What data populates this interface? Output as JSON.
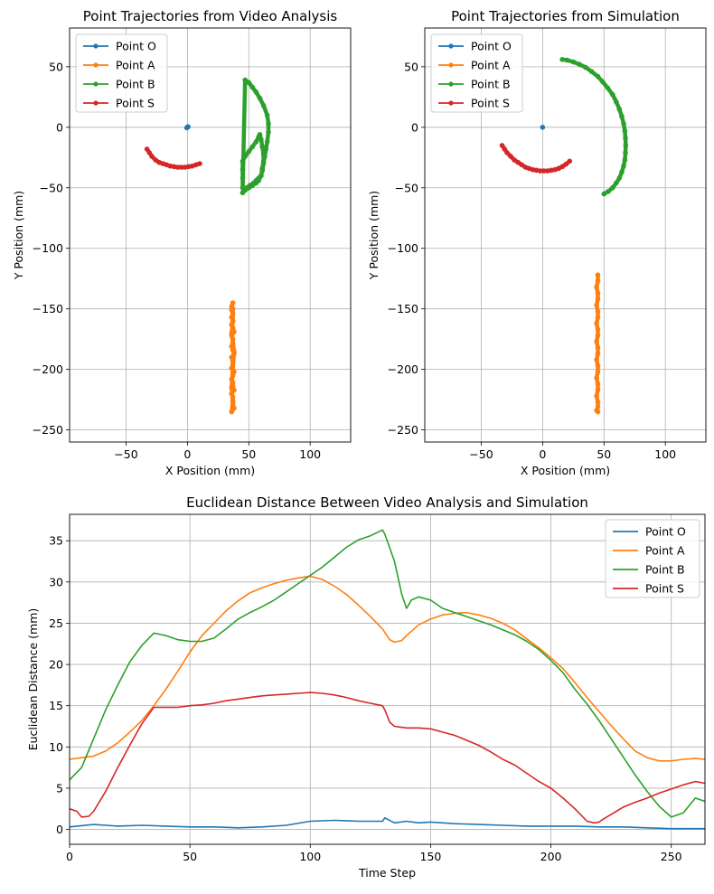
{
  "colors": {
    "Point O": "#1f77b4",
    "Point A": "#ff7f0e",
    "Point B": "#2ca02c",
    "Point S": "#d62728"
  },
  "chart_data": [
    {
      "type": "scatter",
      "title": "Point Trajectories from Video Analysis",
      "xlabel": "X Position (mm)",
      "ylabel": "Y Position (mm)",
      "xlim": [
        -96,
        133
      ],
      "ylim": [
        -260,
        82
      ],
      "xticks": [
        -50,
        0,
        50,
        100
      ],
      "yticks": [
        50,
        0,
        -50,
        -100,
        -150,
        -200,
        -250
      ],
      "grid": true,
      "legend": "upper left",
      "series": [
        {
          "name": "Point O",
          "x": [
            0,
            0.5,
            -0.5,
            0.3,
            0
          ],
          "y": [
            0,
            0.5,
            -0.4,
            0.3,
            0
          ]
        },
        {
          "name": "Point A",
          "x": [
            37,
            36,
            36,
            37,
            36,
            37,
            36,
            37,
            38,
            36,
            37,
            37,
            36,
            37,
            38,
            36,
            37,
            37,
            36,
            38,
            37,
            36,
            37,
            37,
            38,
            36,
            37,
            37,
            37,
            38,
            36,
            37,
            36,
            37,
            38,
            36,
            37,
            37
          ],
          "y": [
            -145,
            -148,
            -151,
            -154,
            -157,
            -160,
            -163,
            -166,
            -169,
            -172,
            -175,
            -178,
            -181,
            -184,
            -187,
            -190,
            -193,
            -196,
            -199,
            -202,
            -205,
            -208,
            -211,
            -214,
            -217,
            -220,
            -223,
            -226,
            -229,
            -232,
            -235,
            -227,
            -215,
            -200,
            -185,
            -170,
            -160,
            -150
          ]
        },
        {
          "name": "Point B",
          "x": [
            45,
            47,
            50,
            53,
            56,
            58,
            60,
            61,
            62,
            62,
            61,
            60,
            59,
            58,
            56,
            53,
            50,
            47,
            45,
            45,
            45,
            45,
            47,
            50,
            53,
            56,
            59,
            62,
            65,
            66,
            66,
            65,
            64,
            63,
            62,
            61,
            60,
            58,
            56,
            54,
            51,
            48,
            46,
            45
          ],
          "y": [
            -54,
            -52,
            -50,
            -48,
            -46,
            -44,
            -40,
            -34,
            -28,
            -22,
            -16,
            -10,
            -6,
            -8,
            -12,
            -16,
            -20,
            -24,
            -28,
            -35,
            -42,
            -50,
            39,
            37,
            33,
            29,
            24,
            18,
            10,
            3,
            -4,
            -12,
            -18,
            -24,
            -30,
            -36,
            -40,
            -42,
            -44,
            -46,
            -48,
            -50,
            -52,
            -54
          ]
        },
        {
          "name": "Point S",
          "x": [
            -33,
            -31,
            -29,
            -26,
            -23,
            -20,
            -17,
            -14,
            -11,
            -8,
            -5,
            -2,
            1,
            4,
            7,
            10
          ],
          "y": [
            -18,
            -21,
            -24,
            -27,
            -29,
            -30,
            -31,
            -32,
            -32.5,
            -33,
            -33,
            -33,
            -32.5,
            -32,
            -31,
            -30
          ]
        }
      ]
    },
    {
      "type": "scatter",
      "title": "Point Trajectories from Simulation",
      "xlabel": "X Position (mm)",
      "ylabel": "Y Position (mm)",
      "xlim": [
        -96,
        133
      ],
      "ylim": [
        -260,
        82
      ],
      "xticks": [
        -50,
        0,
        50,
        100
      ],
      "yticks": [
        50,
        0,
        -50,
        -100,
        -150,
        -200,
        -250
      ],
      "grid": true,
      "legend": "upper left",
      "series": [
        {
          "name": "Point O",
          "x": [
            0
          ],
          "y": [
            0
          ]
        },
        {
          "name": "Point A",
          "x": [
            45,
            45,
            44,
            45,
            45,
            44,
            45,
            45,
            44,
            45,
            45,
            44,
            45,
            45,
            44,
            45,
            45,
            44,
            45,
            45,
            44,
            45,
            45,
            44,
            45
          ],
          "y": [
            -122,
            -127,
            -132,
            -137,
            -142,
            -147,
            -152,
            -157,
            -162,
            -167,
            -172,
            -177,
            -182,
            -187,
            -192,
            -197,
            -202,
            -207,
            -212,
            -217,
            -222,
            -227,
            -231,
            -234,
            -235
          ]
        },
        {
          "name": "Point B",
          "x": [
            16,
            20,
            25,
            30,
            35,
            40,
            45,
            49,
            53,
            57,
            60,
            62.5,
            64.5,
            66,
            67,
            67.5,
            67.7,
            67.5,
            67,
            66,
            64.5,
            62.5,
            60,
            57,
            53.5,
            50
          ],
          "y": [
            56,
            55.5,
            54,
            52,
            49.5,
            46,
            42,
            37.5,
            32.5,
            27,
            21,
            15,
            9,
            3,
            -3,
            -9,
            -15,
            -21,
            -27,
            -32,
            -37,
            -42,
            -46,
            -50,
            -53,
            -55
          ]
        },
        {
          "name": "Point S",
          "x": [
            -33,
            -31,
            -29,
            -26,
            -23,
            -20,
            -17,
            -14,
            -11,
            -8,
            -5,
            -2,
            1,
            4,
            7,
            10,
            13,
            16,
            19,
            22
          ],
          "y": [
            -15,
            -18,
            -21,
            -24,
            -27,
            -29,
            -31,
            -33,
            -34,
            -35,
            -35.5,
            -36,
            -36,
            -36,
            -35.5,
            -35,
            -34,
            -32.5,
            -30.5,
            -28
          ]
        }
      ]
    },
    {
      "type": "line",
      "title": "Euclidean Distance Between Video Analysis and Simulation",
      "xlabel": "Time Step",
      "ylabel": "Euclidean Distance (mm)",
      "xlim": [
        0,
        264
      ],
      "ylim": [
        -1.8,
        38.2
      ],
      "xticks": [
        0,
        50,
        100,
        150,
        200,
        250
      ],
      "yticks": [
        0,
        5,
        10,
        15,
        20,
        25,
        30,
        35
      ],
      "grid": true,
      "legend": "upper right",
      "series": [
        {
          "name": "Point O",
          "x": [
            0,
            10,
            20,
            30,
            40,
            50,
            60,
            70,
            80,
            90,
            100,
            110,
            120,
            125,
            130,
            131,
            135,
            140,
            145,
            150,
            160,
            170,
            180,
            190,
            200,
            210,
            220,
            230,
            240,
            250,
            260,
            264
          ],
          "y": [
            0.3,
            0.6,
            0.4,
            0.5,
            0.4,
            0.3,
            0.3,
            0.2,
            0.3,
            0.5,
            1.0,
            1.1,
            1.0,
            1.0,
            1.0,
            1.4,
            0.8,
            1.0,
            0.8,
            0.9,
            0.7,
            0.6,
            0.5,
            0.4,
            0.4,
            0.4,
            0.3,
            0.3,
            0.2,
            0.1,
            0.1,
            0.1
          ]
        },
        {
          "name": "Point A",
          "x": [
            0,
            5,
            10,
            15,
            20,
            25,
            30,
            35,
            40,
            45,
            50,
            55,
            60,
            65,
            70,
            75,
            80,
            85,
            90,
            95,
            100,
            105,
            110,
            115,
            120,
            125,
            130,
            133,
            135,
            138,
            140,
            145,
            150,
            155,
            160,
            165,
            170,
            175,
            180,
            185,
            190,
            195,
            200,
            205,
            210,
            215,
            220,
            225,
            230,
            235,
            240,
            245,
            250,
            255,
            260,
            264
          ],
          "y": [
            8.5,
            8.7,
            8.9,
            9.5,
            10.5,
            11.8,
            13.2,
            15.0,
            17.0,
            19.2,
            21.5,
            23.5,
            25.0,
            26.5,
            27.7,
            28.7,
            29.3,
            29.8,
            30.2,
            30.5,
            30.7,
            30.3,
            29.5,
            28.5,
            27.2,
            25.8,
            24.3,
            23.0,
            22.7,
            22.9,
            23.5,
            24.8,
            25.5,
            26.0,
            26.2,
            26.3,
            26.0,
            25.6,
            25.0,
            24.2,
            23.1,
            22.0,
            20.8,
            19.5,
            17.8,
            16.0,
            14.3,
            12.6,
            11.0,
            9.5,
            8.7,
            8.3,
            8.3,
            8.5,
            8.6,
            8.5
          ]
        },
        {
          "name": "Point B",
          "x": [
            0,
            5,
            10,
            15,
            20,
            25,
            30,
            35,
            40,
            45,
            50,
            55,
            60,
            65,
            70,
            75,
            80,
            85,
            90,
            95,
            100,
            105,
            110,
            115,
            120,
            125,
            130,
            131,
            135,
            138,
            140,
            142,
            145,
            150,
            155,
            160,
            165,
            170,
            175,
            180,
            185,
            190,
            195,
            200,
            205,
            210,
            215,
            220,
            225,
            230,
            235,
            240,
            245,
            250,
            255,
            260,
            264
          ],
          "y": [
            6.0,
            7.5,
            11.0,
            14.5,
            17.5,
            20.3,
            22.3,
            23.8,
            23.5,
            23.0,
            22.8,
            22.8,
            23.2,
            24.3,
            25.5,
            26.3,
            27.0,
            27.8,
            28.8,
            29.8,
            30.8,
            31.8,
            33.0,
            34.2,
            35.1,
            35.6,
            36.3,
            35.8,
            32.5,
            28.5,
            26.8,
            27.8,
            28.2,
            27.8,
            26.8,
            26.3,
            25.8,
            25.3,
            24.8,
            24.2,
            23.6,
            22.8,
            21.8,
            20.5,
            19.0,
            17.0,
            15.2,
            13.2,
            11.0,
            8.8,
            6.6,
            4.6,
            2.8,
            1.5,
            2.0,
            3.8,
            3.4
          ]
        },
        {
          "name": "Point S",
          "x": [
            0,
            3,
            5,
            8,
            10,
            15,
            20,
            25,
            30,
            35,
            40,
            45,
            50,
            55,
            60,
            65,
            70,
            75,
            80,
            85,
            90,
            95,
            100,
            105,
            110,
            115,
            120,
            125,
            130,
            131,
            133,
            135,
            140,
            145,
            150,
            155,
            160,
            165,
            170,
            175,
            180,
            185,
            190,
            195,
            200,
            205,
            210,
            215,
            218,
            220,
            222,
            225,
            230,
            235,
            240,
            245,
            250,
            255,
            260,
            264
          ],
          "y": [
            2.5,
            2.2,
            1.5,
            1.6,
            2.2,
            4.6,
            7.5,
            10.2,
            12.8,
            14.8,
            14.8,
            14.8,
            15.0,
            15.1,
            15.3,
            15.6,
            15.8,
            16.0,
            16.2,
            16.3,
            16.4,
            16.5,
            16.6,
            16.5,
            16.3,
            16.0,
            15.6,
            15.3,
            15.0,
            14.5,
            13.0,
            12.5,
            12.3,
            12.3,
            12.2,
            11.8,
            11.4,
            10.8,
            10.2,
            9.4,
            8.5,
            7.8,
            6.8,
            5.8,
            5.0,
            3.8,
            2.5,
            1.0,
            0.8,
            0.9,
            1.3,
            1.8,
            2.7,
            3.3,
            3.8,
            4.4,
            4.9,
            5.4,
            5.8,
            5.6
          ]
        }
      ]
    }
  ]
}
